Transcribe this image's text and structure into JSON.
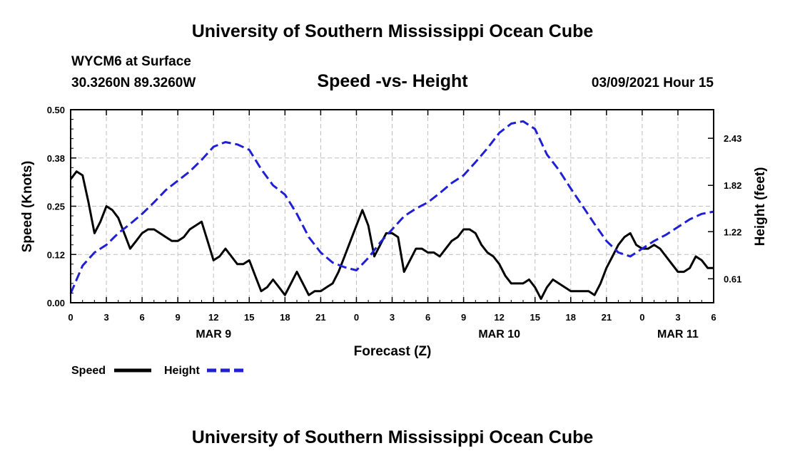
{
  "header": {
    "top_title": "University of Southern Mississippi Ocean Cube",
    "station": "WYCM6 at Surface",
    "coordinates": "30.3260N 89.3260W",
    "subtitle": "Speed -vs- Height",
    "datetime": "03/09/2021 Hour 15"
  },
  "footer": {
    "bottom_title": "University of Southern Mississippi Ocean Cube"
  },
  "chart_data": {
    "type": "line",
    "title": "Speed -vs- Height",
    "xlabel": "Forecast (Z)",
    "ylabel": "Speed (Knots)",
    "y2label": "Height (feet)",
    "xlim": [
      0,
      54
    ],
    "ylim": [
      0,
      0.5
    ],
    "y2lim": [
      0.3,
      2.8
    ],
    "grid": true,
    "legend_position": "bottom-left",
    "x_ticks": [
      {
        "x": 0,
        "label": "0"
      },
      {
        "x": 3,
        "label": "3"
      },
      {
        "x": 6,
        "label": "6"
      },
      {
        "x": 9,
        "label": "9"
      },
      {
        "x": 12,
        "label": "12"
      },
      {
        "x": 15,
        "label": "15"
      },
      {
        "x": 18,
        "label": "18"
      },
      {
        "x": 21,
        "label": "21"
      },
      {
        "x": 24,
        "label": "0"
      },
      {
        "x": 27,
        "label": "3"
      },
      {
        "x": 30,
        "label": "6"
      },
      {
        "x": 33,
        "label": "9"
      },
      {
        "x": 36,
        "label": "12"
      },
      {
        "x": 39,
        "label": "15"
      },
      {
        "x": 42,
        "label": "18"
      },
      {
        "x": 45,
        "label": "21"
      },
      {
        "x": 48,
        "label": "0"
      },
      {
        "x": 51,
        "label": "3"
      },
      {
        "x": 54,
        "label": "6"
      }
    ],
    "date_labels": [
      {
        "x": 12,
        "label": "MAR 9"
      },
      {
        "x": 36,
        "label": "MAR 10"
      },
      {
        "x": 51,
        "label": "MAR 11"
      }
    ],
    "y_ticks": [
      {
        "value": 0.0,
        "label": "0.00"
      },
      {
        "value": 0.125,
        "label": "0.12"
      },
      {
        "value": 0.25,
        "label": "0.25"
      },
      {
        "value": 0.375,
        "label": "0.38"
      },
      {
        "value": 0.5,
        "label": "0.50"
      }
    ],
    "y2_ticks": [
      {
        "value": 0.61,
        "label": "0.61"
      },
      {
        "value": 1.22,
        "label": "1.22"
      },
      {
        "value": 1.82,
        "label": "1.82"
      },
      {
        "value": 2.43,
        "label": "2.43"
      }
    ],
    "series": [
      {
        "name": "Speed",
        "axis": "left",
        "color": "#000000",
        "style": "solid",
        "x": [
          0,
          0.5,
          1,
          1.5,
          2,
          2.5,
          3,
          3.5,
          4,
          4.5,
          5,
          5.5,
          6,
          6.5,
          7,
          7.5,
          8,
          8.5,
          9,
          9.5,
          10,
          10.5,
          11,
          11.5,
          12,
          12.5,
          13,
          13.5,
          14,
          14.5,
          15,
          15.5,
          16,
          16.5,
          17,
          17.5,
          18,
          18.5,
          19,
          19.5,
          20,
          20.5,
          21,
          21.5,
          22,
          22.5,
          23,
          23.5,
          24,
          24.5,
          25,
          25.5,
          26,
          26.5,
          27,
          27.5,
          28,
          28.5,
          29,
          29.5,
          30,
          30.5,
          31,
          31.5,
          32,
          32.5,
          33,
          33.5,
          34,
          34.5,
          35,
          35.5,
          36,
          36.5,
          37,
          37.5,
          38,
          38.5,
          39,
          39.5,
          40,
          40.5,
          41,
          41.5,
          42,
          42.5,
          43,
          43.5,
          44,
          44.5,
          45,
          45.5,
          46,
          46.5,
          47,
          47.5,
          48,
          48.5,
          49,
          49.5,
          50,
          50.5,
          51,
          51.5,
          52,
          52.5,
          53,
          53.5,
          54
        ],
        "values": [
          0.32,
          0.34,
          0.33,
          0.26,
          0.18,
          0.21,
          0.25,
          0.24,
          0.22,
          0.18,
          0.14,
          0.16,
          0.18,
          0.19,
          0.19,
          0.18,
          0.17,
          0.16,
          0.16,
          0.17,
          0.19,
          0.2,
          0.21,
          0.16,
          0.11,
          0.12,
          0.14,
          0.12,
          0.1,
          0.1,
          0.11,
          0.07,
          0.03,
          0.04,
          0.06,
          0.04,
          0.02,
          0.05,
          0.08,
          0.05,
          0.02,
          0.03,
          0.03,
          0.04,
          0.05,
          0.08,
          0.12,
          0.16,
          0.2,
          0.24,
          0.2,
          0.12,
          0.15,
          0.18,
          0.18,
          0.17,
          0.08,
          0.11,
          0.14,
          0.14,
          0.13,
          0.13,
          0.12,
          0.14,
          0.16,
          0.17,
          0.19,
          0.19,
          0.18,
          0.15,
          0.13,
          0.12,
          0.1,
          0.07,
          0.05,
          0.05,
          0.05,
          0.06,
          0.04,
          0.01,
          0.04,
          0.06,
          0.05,
          0.04,
          0.03,
          0.03,
          0.03,
          0.03,
          0.02,
          0.05,
          0.09,
          0.12,
          0.15,
          0.17,
          0.18,
          0.15,
          0.14,
          0.14,
          0.15,
          0.14,
          0.12,
          0.1,
          0.08,
          0.08,
          0.09,
          0.12,
          0.11,
          0.09,
          0.09
        ],
        "values_note": "plotted polyline below uses the sampled values listed here"
      },
      {
        "name": "Height",
        "axis": "right",
        "color": "#1f1fd6",
        "style": "dashed",
        "x": [
          0,
          1,
          2,
          3,
          4,
          5,
          6,
          7,
          8,
          9,
          10,
          11,
          12,
          13,
          14,
          15,
          16,
          17,
          18,
          19,
          20,
          21,
          22,
          23,
          24,
          25,
          26,
          27,
          28,
          29,
          30,
          31,
          32,
          33,
          34,
          35,
          36,
          37,
          38,
          39,
          40,
          41,
          42,
          43,
          44,
          45,
          46,
          47,
          48,
          49,
          50,
          51,
          52,
          53,
          54
        ],
        "values": [
          0.42,
          0.78,
          0.95,
          1.05,
          1.2,
          1.32,
          1.45,
          1.6,
          1.76,
          1.88,
          2.0,
          2.15,
          2.32,
          2.38,
          2.35,
          2.28,
          2.03,
          1.82,
          1.7,
          1.45,
          1.15,
          0.95,
          0.82,
          0.76,
          0.72,
          0.88,
          1.08,
          1.25,
          1.42,
          1.52,
          1.6,
          1.72,
          1.85,
          1.95,
          2.12,
          2.3,
          2.5,
          2.62,
          2.65,
          2.55,
          2.22,
          2.02,
          1.78,
          1.55,
          1.32,
          1.1,
          0.95,
          0.9,
          1.0,
          1.1,
          1.18,
          1.28,
          1.38,
          1.45,
          1.48
        ]
      }
    ]
  }
}
